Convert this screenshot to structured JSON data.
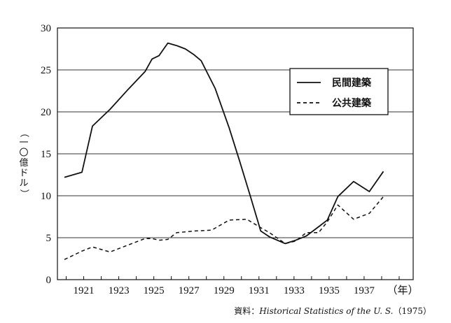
{
  "chart_data": {
    "type": "line",
    "ylabel": "（一〇億ドル）",
    "x_unit_label": "（年）",
    "ylim": [
      0,
      30
    ],
    "yticks": [
      "0",
      "5",
      "10",
      "15",
      "20",
      "25",
      "30"
    ],
    "xlim": [
      1919.5,
      1939.8
    ],
    "xticks": [
      "1921",
      "1923",
      "1925",
      "1927",
      "1929",
      "1931",
      "1933",
      "1935",
      "1937"
    ],
    "grid": "horizontal",
    "legend_position": "upper-right",
    "series": [
      {
        "name": "民間建築",
        "style": "solid",
        "color": "#111111",
        "x": [
          1919.9,
          1920.9,
          1921.5,
          1922.5,
          1923.5,
          1924.5,
          1924.9,
          1925.3,
          1925.5,
          1925.8,
          1926.3,
          1926.8,
          1927.3,
          1927.7,
          1928.5,
          1929.3,
          1929.9,
          1930.5,
          1931.1,
          1931.6,
          1932.5,
          1933.1,
          1933.7,
          1934.4,
          1934.9,
          1935.5,
          1936.4,
          1937.3,
          1938.1
        ],
        "y": [
          12.2,
          12.8,
          18.3,
          20.3,
          22.6,
          24.8,
          26.3,
          26.7,
          27.3,
          28.2,
          27.9,
          27.5,
          26.8,
          26.1,
          22.8,
          18.1,
          14.1,
          10.0,
          5.8,
          5.1,
          4.3,
          4.7,
          5.2,
          6.3,
          7.1,
          9.9,
          11.7,
          10.5,
          12.9
        ]
      },
      {
        "name": "公共建築",
        "style": "dashed",
        "color": "#111111",
        "x": [
          1919.9,
          1920.9,
          1921.5,
          1922.5,
          1923.5,
          1924.5,
          1924.9,
          1925.3,
          1925.8,
          1926.3,
          1927.3,
          1928.3,
          1929.3,
          1930.3,
          1931.1,
          1931.6,
          1932.5,
          1933.1,
          1933.7,
          1934.4,
          1934.9,
          1935.5,
          1936.4,
          1937.3,
          1938.1
        ],
        "y": [
          2.4,
          3.4,
          3.9,
          3.3,
          4.1,
          4.9,
          4.9,
          4.7,
          4.8,
          5.6,
          5.8,
          5.9,
          7.1,
          7.2,
          6.2,
          5.6,
          4.3,
          4.6,
          5.6,
          5.6,
          6.9,
          8.9,
          7.2,
          7.9,
          9.9
        ]
      }
    ]
  },
  "source": {
    "prefix": "資料：",
    "title": "Historical Statistics of the U. S.",
    "year": "（1975）"
  }
}
